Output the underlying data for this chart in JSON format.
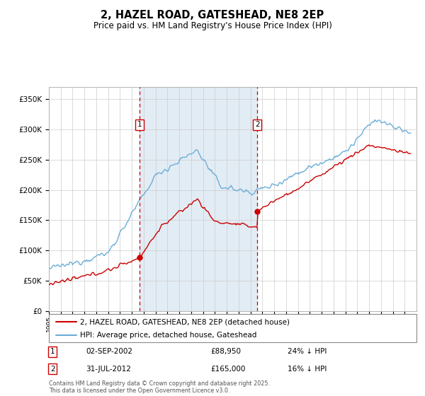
{
  "title": "2, HAZEL ROAD, GATESHEAD, NE8 2EP",
  "subtitle": "Price paid vs. HM Land Registry's House Price Index (HPI)",
  "legend_line1": "2, HAZEL ROAD, GATESHEAD, NE8 2EP (detached house)",
  "legend_line2": "HPI: Average price, detached house, Gateshead",
  "footer": "Contains HM Land Registry data © Crown copyright and database right 2025.\nThis data is licensed under the Open Government Licence v3.0.",
  "sale1_date": "02-SEP-2002",
  "sale1_price": "£88,950",
  "sale1_hpi": "24% ↓ HPI",
  "sale2_date": "31-JUL-2012",
  "sale2_price": "£165,000",
  "sale2_hpi": "16% ↓ HPI",
  "sale1_year": 2002.67,
  "sale1_value": 88950,
  "sale2_year": 2012.58,
  "sale2_value": 165000,
  "hpi_color": "#6baed6",
  "price_color": "#cc0000",
  "bg_shade_color": "#d6e4f0",
  "grid_color": "#cccccc",
  "title_color": "#000000",
  "xmin": 1995,
  "xmax": 2026,
  "ymin": 0,
  "ymax": 370000
}
